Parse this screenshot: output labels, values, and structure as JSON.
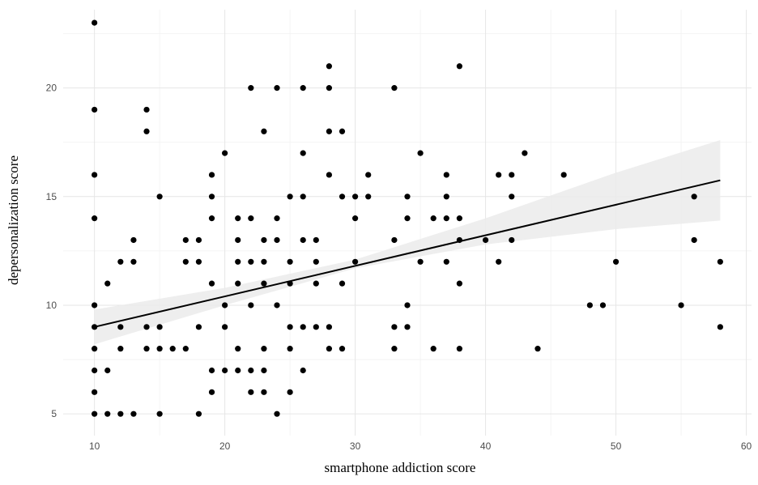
{
  "chart_data": {
    "type": "scatter",
    "xlabel": "smartphone addiction score",
    "ylabel": "depersonalization score",
    "xlim": [
      7.6,
      60.4
    ],
    "ylim": [
      4.0,
      23.6
    ],
    "x_ticks": [
      10,
      20,
      30,
      40,
      50,
      60
    ],
    "y_ticks": [
      5,
      10,
      15,
      20
    ],
    "grid": true,
    "point_color": "#000000",
    "ribbon_color": "#ebebeb",
    "points": [
      [
        10,
        23
      ],
      [
        10,
        19
      ],
      [
        10,
        16
      ],
      [
        10,
        14
      ],
      [
        10,
        10
      ],
      [
        10,
        9
      ],
      [
        10,
        8
      ],
      [
        10,
        7
      ],
      [
        10,
        6
      ],
      [
        10,
        5
      ],
      [
        11,
        11
      ],
      [
        11,
        7
      ],
      [
        11,
        5
      ],
      [
        12,
        12
      ],
      [
        12,
        9
      ],
      [
        12,
        8
      ],
      [
        12,
        5
      ],
      [
        13,
        13
      ],
      [
        13,
        12
      ],
      [
        13,
        5
      ],
      [
        14,
        19
      ],
      [
        14,
        18
      ],
      [
        14,
        9
      ],
      [
        14,
        8
      ],
      [
        15,
        15
      ],
      [
        15,
        9
      ],
      [
        15,
        8
      ],
      [
        15,
        5
      ],
      [
        16,
        8
      ],
      [
        17,
        13
      ],
      [
        17,
        12
      ],
      [
        17,
        8
      ],
      [
        18,
        13
      ],
      [
        18,
        12
      ],
      [
        18,
        9
      ],
      [
        18,
        5
      ],
      [
        19,
        16
      ],
      [
        19,
        15
      ],
      [
        19,
        14
      ],
      [
        19,
        11
      ],
      [
        19,
        7
      ],
      [
        19,
        6
      ],
      [
        20,
        17
      ],
      [
        20,
        10
      ],
      [
        20,
        9
      ],
      [
        20,
        7
      ],
      [
        21,
        14
      ],
      [
        21,
        13
      ],
      [
        21,
        12
      ],
      [
        21,
        11
      ],
      [
        21,
        8
      ],
      [
        21,
        7
      ],
      [
        22,
        20
      ],
      [
        22,
        14
      ],
      [
        22,
        12
      ],
      [
        22,
        10
      ],
      [
        22,
        7
      ],
      [
        22,
        6
      ],
      [
        23,
        18
      ],
      [
        23,
        13
      ],
      [
        23,
        12
      ],
      [
        23,
        11
      ],
      [
        23,
        8
      ],
      [
        23,
        7
      ],
      [
        23,
        6
      ],
      [
        24,
        20
      ],
      [
        24,
        14
      ],
      [
        24,
        13
      ],
      [
        24,
        10
      ],
      [
        24,
        5
      ],
      [
        25,
        15
      ],
      [
        25,
        12
      ],
      [
        25,
        11
      ],
      [
        25,
        9
      ],
      [
        25,
        8
      ],
      [
        25,
        6
      ],
      [
        26,
        20
      ],
      [
        26,
        17
      ],
      [
        26,
        15
      ],
      [
        26,
        13
      ],
      [
        26,
        9
      ],
      [
        26,
        7
      ],
      [
        27,
        13
      ],
      [
        27,
        12
      ],
      [
        27,
        11
      ],
      [
        27,
        9
      ],
      [
        28,
        21
      ],
      [
        28,
        20
      ],
      [
        28,
        18
      ],
      [
        28,
        16
      ],
      [
        28,
        9
      ],
      [
        28,
        8
      ],
      [
        29,
        18
      ],
      [
        29,
        15
      ],
      [
        29,
        11
      ],
      [
        29,
        8
      ],
      [
        30,
        15
      ],
      [
        30,
        14
      ],
      [
        30,
        12
      ],
      [
        31,
        16
      ],
      [
        31,
        15
      ],
      [
        33,
        20
      ],
      [
        33,
        13
      ],
      [
        33,
        9
      ],
      [
        33,
        8
      ],
      [
        34,
        15
      ],
      [
        34,
        14
      ],
      [
        34,
        10
      ],
      [
        34,
        9
      ],
      [
        35,
        17
      ],
      [
        35,
        12
      ],
      [
        36,
        14
      ],
      [
        36,
        8
      ],
      [
        37,
        16
      ],
      [
        37,
        15
      ],
      [
        37,
        14
      ],
      [
        37,
        12
      ],
      [
        38,
        21
      ],
      [
        38,
        14
      ],
      [
        38,
        13
      ],
      [
        38,
        11
      ],
      [
        38,
        8
      ],
      [
        40,
        13
      ],
      [
        41,
        16
      ],
      [
        41,
        12
      ],
      [
        42,
        16
      ],
      [
        42,
        15
      ],
      [
        42,
        13
      ],
      [
        43,
        17
      ],
      [
        44,
        8
      ],
      [
        46,
        16
      ],
      [
        48,
        10
      ],
      [
        49,
        10
      ],
      [
        50,
        12
      ],
      [
        55,
        10
      ],
      [
        56,
        15
      ],
      [
        56,
        13
      ],
      [
        58,
        12
      ],
      [
        58,
        9
      ]
    ],
    "trend_line": {
      "x": [
        10,
        58
      ],
      "y": [
        9.0,
        15.75
      ]
    },
    "confidence_band": {
      "x": [
        10,
        20,
        30,
        40,
        50,
        58
      ],
      "lower": [
        8.2,
        10.0,
        11.7,
        12.8,
        13.5,
        13.9
      ],
      "upper": [
        9.8,
        10.8,
        12.1,
        14.0,
        16.1,
        17.6
      ]
    }
  }
}
